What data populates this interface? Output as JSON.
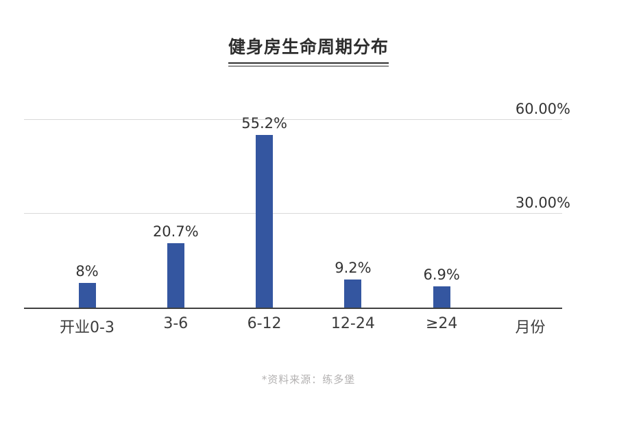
{
  "header": {
    "title": "健身房生命周期分布"
  },
  "chart_data": {
    "type": "bar",
    "title": "健身房生命周期分布",
    "categories": [
      "开业0-3",
      "3-6",
      "6-12",
      "12-24",
      "≥24"
    ],
    "values": [
      8,
      20.7,
      55.2,
      9.2,
      6.9
    ],
    "value_labels": [
      "8%",
      "20.7%",
      "55.2%",
      "9.2%",
      "6.9%"
    ],
    "xlabel": "月份",
    "ylabel": "",
    "ylim": [
      0,
      66
    ],
    "yticks": [
      {
        "value": 30,
        "label": "30.00%"
      },
      {
        "value": 60,
        "label": "60.00%"
      }
    ],
    "grid": "horizontal-only",
    "legend": "none",
    "colors": {
      "bar": "#3456a0",
      "axis": "#3f3f3f",
      "gridline": "#d9d9d9",
      "text": "#333333"
    }
  },
  "footer": {
    "source_note": "*资料来源：练多堡"
  }
}
